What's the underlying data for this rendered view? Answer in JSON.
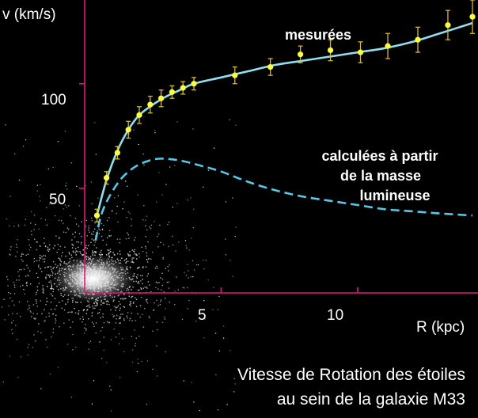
{
  "chart_data": {
    "type": "scatter",
    "ylabel": "v (km/s)",
    "xlabel": "R (kpc)",
    "x_ticks": [
      5,
      10
    ],
    "y_ticks": [
      50,
      100
    ],
    "xlim": [
      0,
      14.2
    ],
    "ylim": [
      0,
      140
    ],
    "grid": false,
    "series": [
      {
        "name": "mesurées",
        "kind": "points",
        "x": [
          0.45,
          0.8,
          1.2,
          1.6,
          2.0,
          2.4,
          2.8,
          3.2,
          3.6,
          4.0,
          5.5,
          6.8,
          7.9,
          9.0,
          10.1,
          11.1,
          12.2,
          13.3,
          14.2
        ],
        "y": [
          37,
          55,
          67,
          78,
          85,
          90,
          93,
          96,
          98,
          100,
          104,
          108,
          114,
          116,
          115,
          118,
          121,
          128,
          132
        ],
        "err": [
          3,
          3,
          3,
          4,
          4,
          4,
          4,
          3,
          3,
          3,
          4,
          4,
          4,
          5,
          5,
          6,
          6,
          7,
          8
        ]
      },
      {
        "name": "mesurées-fit",
        "kind": "line",
        "x": [
          0.45,
          0.8,
          1.2,
          1.6,
          2.0,
          2.5,
          3.0,
          3.5,
          4.0,
          5.0,
          6.0,
          7.0,
          8.0,
          9.0,
          10.0,
          11.0,
          12.0,
          13.0,
          14.2
        ],
        "y": [
          37,
          54,
          68,
          78,
          85,
          90,
          94,
          97,
          100,
          103,
          106,
          109,
          111,
          113,
          115,
          117,
          120,
          124,
          129
        ]
      },
      {
        "name": "calculées à partir de la masse lumineuse",
        "kind": "dashed-line",
        "x": [
          0.4,
          0.6,
          0.9,
          1.3,
          1.7,
          2.1,
          2.6,
          3.1,
          3.6,
          4.2,
          5.0,
          6.0,
          7.0,
          8.0,
          9.0,
          10.0,
          11.0,
          12.0,
          13.0,
          14.2
        ],
        "y": [
          25,
          37,
          46,
          54,
          59,
          62,
          64,
          64,
          63,
          61,
          58,
          53,
          49,
          46,
          44,
          42,
          40,
          39,
          38,
          37
        ]
      }
    ],
    "annotations": {
      "measured": "mesurées",
      "calculated_lines": [
        "calculées à partir",
        "de la masse",
        "lumineuse"
      ]
    },
    "caption_lines": [
      "Vitesse de Rotation des étoiles",
      "au sein de la galaxie M33"
    ]
  },
  "colors": {
    "axis": "#e8127c",
    "points": "#ffff33",
    "errorbar": "#d8b818",
    "fit_line": "#8ee0f0",
    "dashed_line": "#56c9e6",
    "text": "#ffffff",
    "background": "#000000"
  }
}
